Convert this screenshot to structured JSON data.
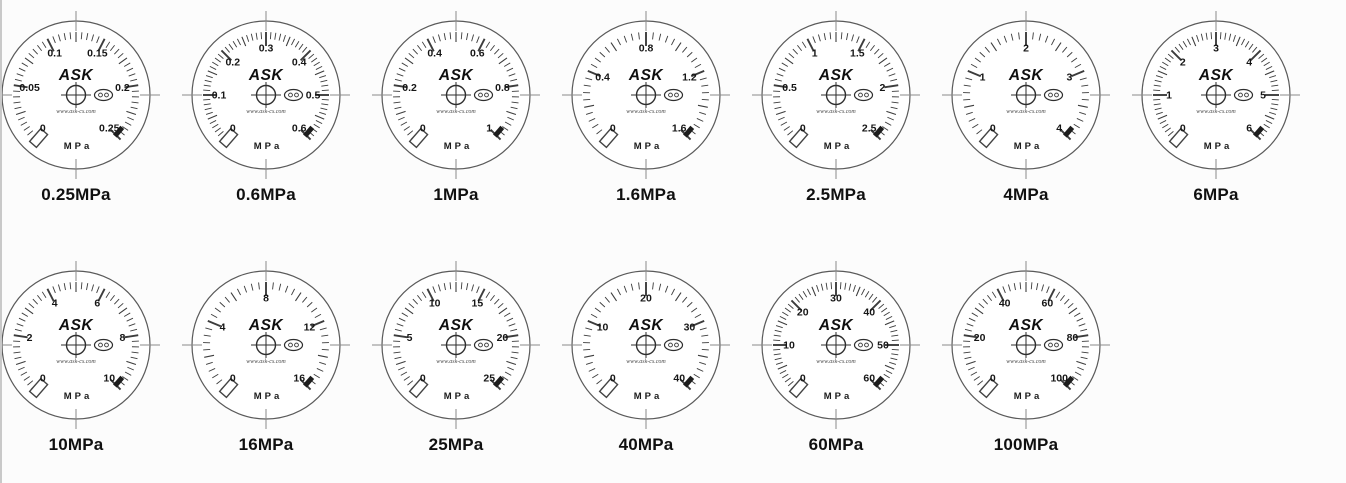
{
  "page": {
    "background": "#fcfcfc",
    "ink_color": "#2e2e2e",
    "edge_line_color": "#c9c9c9",
    "label_color": "#101010"
  },
  "brand": "ASK",
  "website": "www.ask-cs.com",
  "unit": "MPa",
  "rows": [
    {
      "gauges": [
        {
          "title": "0.25MPa",
          "scale_labels": [
            "0",
            "0.05",
            "0.1",
            "0.15",
            "0.2",
            "0.25"
          ]
        },
        {
          "title": "0.6MPa",
          "scale_labels": [
            "0",
            "0.1",
            "0.2",
            "0.3",
            "0.4",
            "0.5",
            "0.6"
          ]
        },
        {
          "title": "1MPa",
          "scale_labels": [
            "0",
            "0.2",
            "0.4",
            "0.6",
            "0.8",
            "1"
          ]
        },
        {
          "title": "1.6MPa",
          "scale_labels": [
            "0",
            "0.4",
            "0.8",
            "1.2",
            "1.6"
          ]
        },
        {
          "title": "2.5MPa",
          "scale_labels": [
            "0",
            "0.5",
            "1",
            "1.5",
            "2",
            "2.5"
          ]
        },
        {
          "title": "4MPa",
          "scale_labels": [
            "0",
            "1",
            "2",
            "3",
            "4"
          ]
        },
        {
          "title": "6MPa",
          "scale_labels": [
            "0",
            "1",
            "2",
            "3",
            "4",
            "5",
            "6"
          ]
        }
      ]
    },
    {
      "gauges": [
        {
          "title": "10MPa",
          "scale_labels": [
            "0",
            "2",
            "4",
            "6",
            "8",
            "10"
          ]
        },
        {
          "title": "16MPa",
          "scale_labels": [
            "0",
            "4",
            "8",
            "12",
            "16"
          ]
        },
        {
          "title": "25MPa",
          "scale_labels": [
            "0",
            "5",
            "10",
            "15",
            "20",
            "25"
          ]
        },
        {
          "title": "40MPa",
          "scale_labels": [
            "0",
            "10",
            "20",
            "30",
            "40"
          ]
        },
        {
          "title": "60MPa",
          "scale_labels": [
            "0",
            "10",
            "20",
            "30",
            "40",
            "50",
            "60"
          ]
        },
        {
          "title": "100MPa",
          "scale_labels": [
            "0",
            "20",
            "40",
            "60",
            "80",
            "100"
          ]
        }
      ]
    }
  ]
}
